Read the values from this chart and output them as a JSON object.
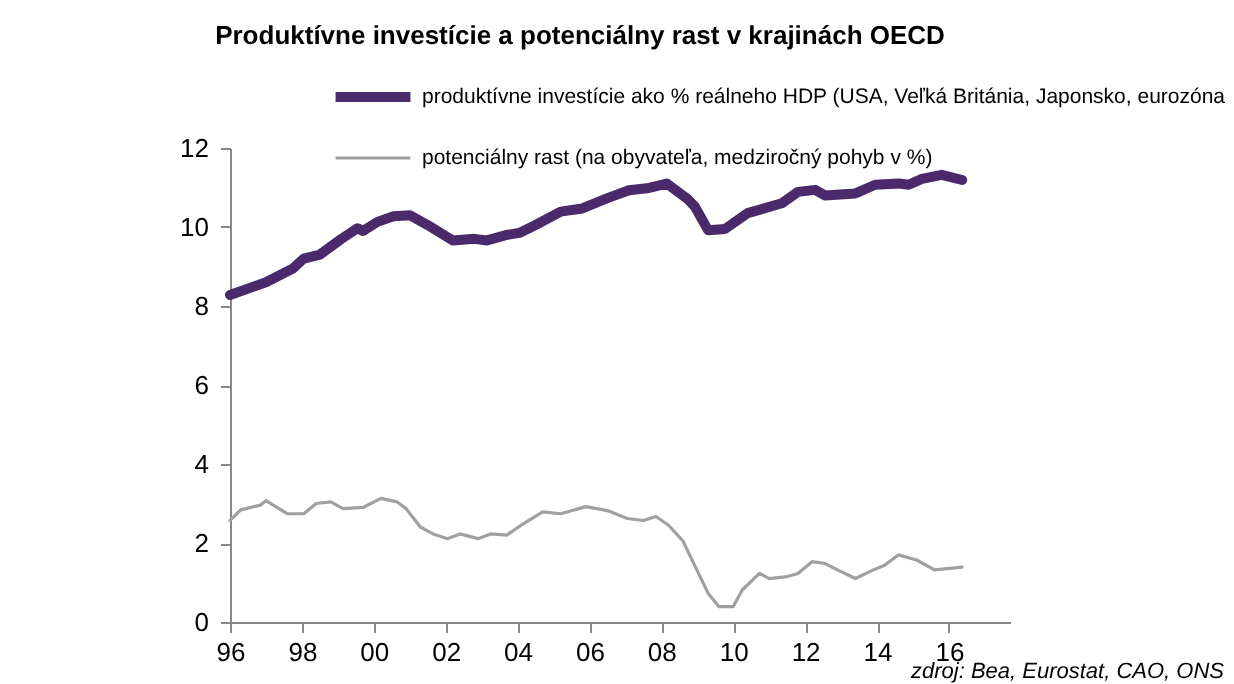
{
  "chart_data": {
    "type": "line",
    "title": "Produktívne investície a potenciálny rast v krajinách OECD",
    "xlim": [
      1996,
      2017.7
    ],
    "xticks": [
      {
        "value": 1996,
        "label": "96"
      },
      {
        "value": 1998,
        "label": "98"
      },
      {
        "value": 2000,
        "label": "00"
      },
      {
        "value": 2002,
        "label": "02"
      },
      {
        "value": 2004,
        "label": "04"
      },
      {
        "value": 2006,
        "label": "06"
      },
      {
        "value": 2008,
        "label": "08"
      },
      {
        "value": 2010,
        "label": "10"
      },
      {
        "value": 2012,
        "label": "12"
      },
      {
        "value": 2014,
        "label": "14"
      },
      {
        "value": 2016,
        "label": "16"
      }
    ],
    "ylim": [
      0,
      12
    ],
    "yticks": [
      0,
      2,
      4,
      6,
      8,
      10,
      12
    ],
    "legend": "top",
    "series": [
      {
        "name": "produktívne investície ako % reálneho HDP (USA, Veľká Británia, Japonsko, eurozóna",
        "color": "#4b2a6b",
        "x": [
          1996.0,
          1997.0,
          1997.75,
          1998.05,
          1998.5,
          1999.1,
          1999.55,
          1999.7,
          2000.1,
          2000.55,
          2001.0,
          2001.5,
          2002.2,
          2002.8,
          2003.15,
          2003.7,
          2004.05,
          2004.5,
          2005.2,
          2005.8,
          2006.5,
          2007.1,
          2007.6,
          2008.15,
          2008.74,
          2008.93,
          2009.3,
          2009.77,
          2010.4,
          2011.35,
          2011.8,
          2012.28,
          2012.55,
          2013.4,
          2013.95,
          2014.6,
          2014.88,
          2015.25,
          2015.8,
          2016.37
        ],
        "values": [
          8.28,
          8.6,
          8.95,
          9.2,
          9.3,
          9.7,
          9.97,
          9.9,
          10.13,
          10.27,
          10.3,
          10.05,
          9.66,
          9.7,
          9.66,
          9.8,
          9.85,
          10.05,
          10.39,
          10.47,
          10.73,
          10.93,
          10.98,
          11.1,
          10.7,
          10.52,
          9.92,
          9.95,
          10.35,
          10.6,
          10.89,
          10.94,
          10.8,
          10.85,
          11.07,
          11.1,
          11.07,
          11.22,
          11.32,
          11.19
        ]
      },
      {
        "name": "potenciálny rast (na obyvateľa, medziročný pohyb v %)",
        "color": "#a0a0a0",
        "x": [
          1996.0,
          1996.3,
          1996.85,
          1997.0,
          1997.6,
          1998.05,
          1998.4,
          1998.8,
          1999.15,
          1999.7,
          2000.2,
          2000.65,
          2000.9,
          2001.3,
          2001.65,
          2002.05,
          2002.4,
          2002.9,
          2003.25,
          2003.7,
          2004.1,
          2004.7,
          2005.2,
          2005.9,
          2006.5,
          2007.05,
          2007.5,
          2007.85,
          2008.2,
          2008.6,
          2009.3,
          2009.6,
          2010.0,
          2010.25,
          2010.73,
          2011.0,
          2011.5,
          2011.8,
          2012.2,
          2012.55,
          2012.9,
          2013.4,
          2013.9,
          2014.2,
          2014.6,
          2015.1,
          2015.6,
          2016.37
        ],
        "values": [
          2.57,
          2.84,
          2.96,
          3.07,
          2.74,
          2.74,
          3.0,
          3.04,
          2.87,
          2.9,
          3.13,
          3.04,
          2.87,
          2.4,
          2.23,
          2.11,
          2.23,
          2.11,
          2.23,
          2.2,
          2.45,
          2.79,
          2.74,
          2.92,
          2.82,
          2.62,
          2.57,
          2.67,
          2.45,
          2.05,
          0.73,
          0.39,
          0.39,
          0.81,
          1.23,
          1.1,
          1.15,
          1.23,
          1.53,
          1.48,
          1.32,
          1.1,
          1.32,
          1.43,
          1.7,
          1.57,
          1.32,
          1.39
        ]
      }
    ],
    "annotations": [
      "zdroj: Bea, Eurostat, CAO, ONS"
    ]
  }
}
